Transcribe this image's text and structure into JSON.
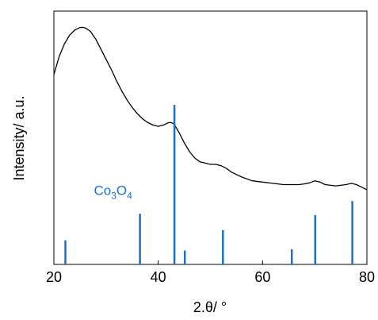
{
  "chart_data": {
    "type": "line",
    "xlabel": "2.θ/ °",
    "ylabel": "Intensity/  a.u.",
    "xlim": [
      20,
      80
    ],
    "ylim": [
      0,
      100
    ],
    "xticks": [
      20,
      40,
      60,
      80
    ],
    "grid": false,
    "colors": {
      "curve": "#000000",
      "reference": "#1f6fc5"
    },
    "series": [
      {
        "type": "line",
        "x": [
          20,
          21,
          22,
          23,
          24,
          25,
          25.5,
          26,
          27,
          28,
          29,
          30,
          31,
          32,
          33,
          34,
          35,
          36,
          37,
          38,
          39,
          40,
          41,
          42,
          42.5,
          43,
          44,
          45,
          46,
          47,
          48,
          49,
          50,
          51,
          52,
          53,
          54,
          55,
          56,
          58,
          60,
          62,
          64,
          66,
          67,
          68,
          69,
          70,
          71,
          72,
          74,
          76,
          77,
          78,
          79,
          80
        ],
        "y": [
          75,
          82,
          87,
          90.5,
          92.5,
          93.5,
          93.6,
          93.4,
          92,
          89,
          85,
          81,
          77,
          72.5,
          68.5,
          65,
          62,
          59.5,
          57.5,
          56,
          55,
          54.5,
          55,
          56,
          56,
          55.5,
          52,
          48,
          44.5,
          42,
          40.5,
          40,
          39.5,
          39.5,
          39,
          38,
          36.5,
          35.5,
          34.5,
          33,
          32.5,
          32,
          31.5,
          31.5,
          31.5,
          31.8,
          32.2,
          33,
          32.5,
          31.5,
          31,
          31.5,
          32,
          31.5,
          30.5,
          29.5
        ]
      },
      {
        "type": "stem",
        "name": "Co3O4",
        "x": [
          22.2,
          36.5,
          43.1,
          45.1,
          52.4,
          65.6,
          70.1,
          77.2
        ],
        "y": [
          9.5,
          20,
          63,
          5.5,
          13.5,
          6,
          19.5,
          25
        ]
      }
    ],
    "annotations": [
      {
        "text": "Co3O4",
        "base": "Co",
        "sub1": "3",
        "mid": "O",
        "sub2": "4",
        "x": 34.5,
        "y": 25
      }
    ]
  }
}
